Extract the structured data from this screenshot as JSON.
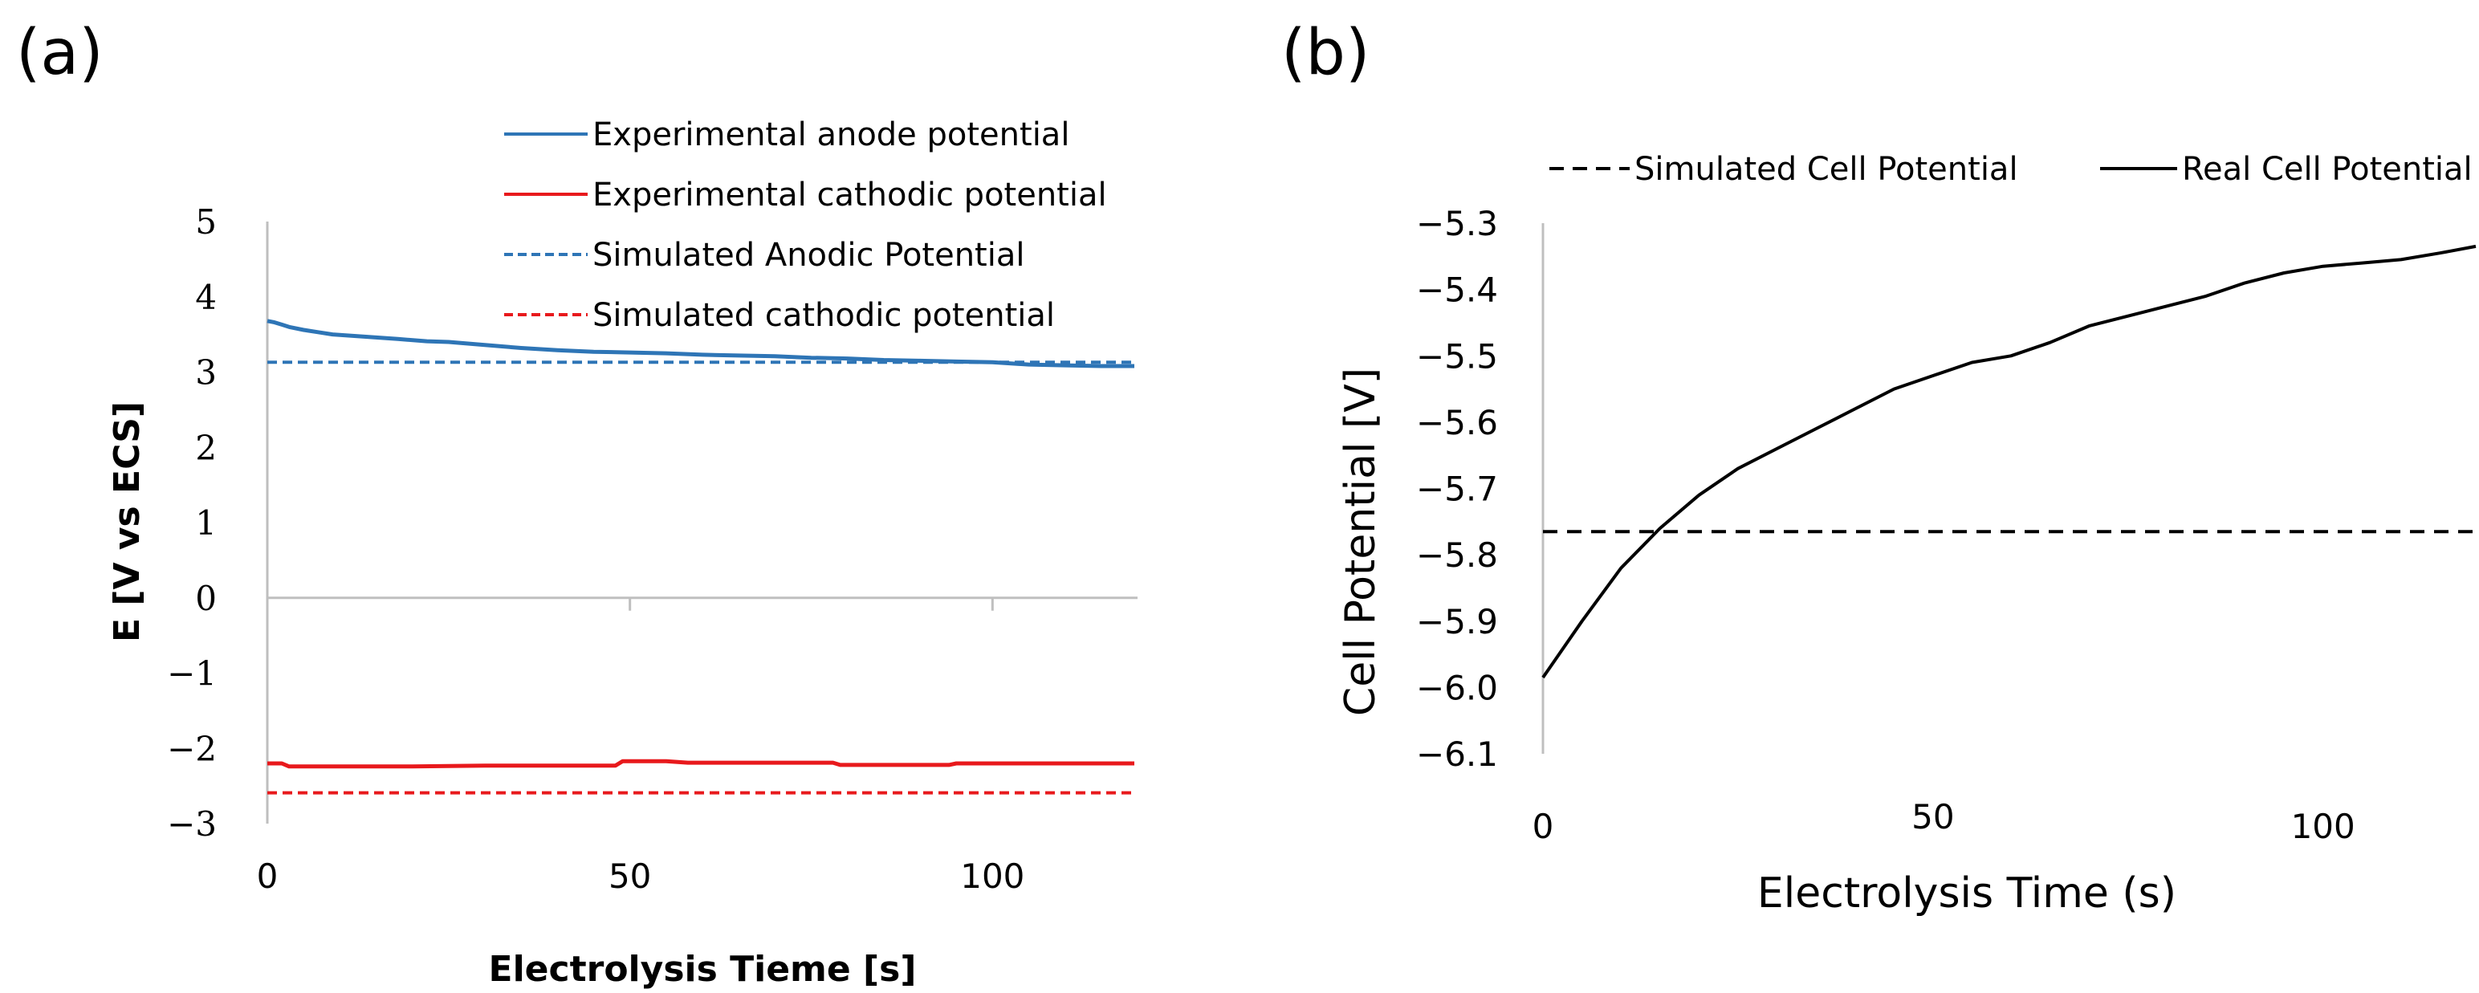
{
  "panels": {
    "a": {
      "label": "(a)"
    },
    "b": {
      "label": "(b)"
    }
  },
  "colors": {
    "blue": "#2e75b6",
    "red": "#e8191c",
    "black": "#000000",
    "axis": "#bfbfbf"
  },
  "chart_data": [
    {
      "id": "a",
      "type": "line",
      "title": "",
      "xlabel": "Electrolysis Tieme [s]",
      "ylabel": "E [V vs ECS]",
      "xlim": [
        0,
        120
      ],
      "ylim": [
        -3,
        5
      ],
      "xticks": [
        0,
        50,
        100
      ],
      "xtick_labels": [
        "0",
        "50",
        "100"
      ],
      "yticks": [
        5,
        4,
        3,
        2,
        1,
        0,
        -1,
        -2,
        -3
      ],
      "ytick_labels": [
        "5",
        "4",
        "3",
        "2",
        "1",
        "0",
        "−1",
        "−2",
        "−3"
      ],
      "legend": "top-right",
      "series": [
        {
          "name": "Experimental anode potential",
          "style": "solid",
          "color": "#2e75b6",
          "x": [
            0,
            1,
            2,
            3,
            5,
            7,
            9,
            12,
            15,
            18,
            22,
            25,
            30,
            35,
            40,
            45,
            50,
            55,
            60,
            65,
            70,
            75,
            80,
            85,
            90,
            95,
            100,
            105,
            110,
            115,
            120
          ],
          "y": [
            3.68,
            3.66,
            3.63,
            3.6,
            3.56,
            3.53,
            3.5,
            3.48,
            3.46,
            3.44,
            3.41,
            3.4,
            3.36,
            3.32,
            3.29,
            3.27,
            3.26,
            3.25,
            3.23,
            3.22,
            3.21,
            3.19,
            3.18,
            3.16,
            3.15,
            3.14,
            3.13,
            3.1,
            3.09,
            3.08,
            3.08
          ]
        },
        {
          "name": "Experimental cathodic potential",
          "style": "solid",
          "color": "#e8191c",
          "x": [
            0,
            2,
            3,
            10,
            20,
            30,
            40,
            48,
            49,
            55,
            58,
            60,
            70,
            78,
            79,
            90,
            94,
            95,
            105,
            120
          ],
          "y": [
            -2.2,
            -2.2,
            -2.24,
            -2.24,
            -2.24,
            -2.23,
            -2.23,
            -2.23,
            -2.17,
            -2.17,
            -2.19,
            -2.19,
            -2.19,
            -2.19,
            -2.22,
            -2.22,
            -2.22,
            -2.2,
            -2.2,
            -2.2
          ]
        },
        {
          "name": "Simulated Anodic Potential",
          "style": "dashed",
          "color": "#2e75b6",
          "x": [
            0,
            120
          ],
          "y": [
            3.13,
            3.13
          ]
        },
        {
          "name": "Simulated cathodic potential",
          "style": "dashed",
          "color": "#e8191c",
          "x": [
            0,
            120
          ],
          "y": [
            -2.59,
            -2.59
          ]
        }
      ]
    },
    {
      "id": "b",
      "type": "line",
      "title": "",
      "xlabel": "Electrolysis Time (s)",
      "ylabel": "Cell Potential [V]",
      "xlim": [
        0,
        120
      ],
      "ylim": [
        -6.1,
        -5.3
      ],
      "xticks": [
        0,
        50,
        100
      ],
      "xtick_labels": [
        "0",
        "50",
        "100"
      ],
      "yticks": [
        -5.3,
        -5.4,
        -5.5,
        -5.6,
        -5.7,
        -5.8,
        -5.9,
        -6.0,
        -6.1
      ],
      "ytick_labels": [
        "−5.3",
        "−5.4",
        "−5.5",
        "−5.6",
        "−5.7",
        "−5.8",
        "−5.9",
        "−6.0",
        "−6.1"
      ],
      "legend": "top",
      "series": [
        {
          "name": "Simulated Cell Potential",
          "style": "dashed",
          "color": "#000000",
          "x": [
            0,
            120
          ],
          "y": [
            -5.765,
            -5.765
          ]
        },
        {
          "name": "Real Cell Potential",
          "style": "solid",
          "color": "#000000",
          "x": [
            0,
            5,
            10,
            15,
            20,
            25,
            30,
            35,
            40,
            45,
            50,
            55,
            60,
            65,
            70,
            75,
            80,
            85,
            90,
            95,
            100,
            105,
            110,
            115,
            120
          ],
          "y": [
            -5.985,
            -5.9,
            -5.82,
            -5.76,
            -5.71,
            -5.67,
            -5.64,
            -5.61,
            -5.58,
            -5.55,
            -5.53,
            -5.51,
            -5.5,
            -5.48,
            -5.455,
            -5.44,
            -5.425,
            -5.41,
            -5.39,
            -5.375,
            -5.365,
            -5.36,
            -5.355,
            -5.345,
            -5.335
          ]
        }
      ]
    }
  ]
}
